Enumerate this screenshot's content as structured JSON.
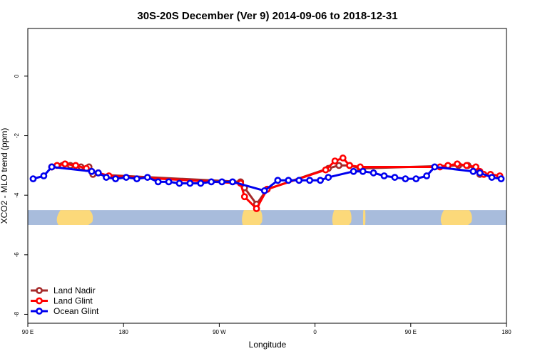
{
  "chart_data": {
    "type": "line",
    "title": "30S-20S December (Ver 9)   2014-09-06 to 2018-12-31",
    "xlabel": "Longitude",
    "ylabel": "XCO2 - MLO trend (ppm)",
    "xlim": [
      0,
      360
    ],
    "ylim": [
      -8.3,
      1.6
    ],
    "x_ticks": [
      {
        "value": 0,
        "label": "90 E"
      },
      {
        "value": 72,
        "label": "180"
      },
      {
        "value": 144,
        "label": "90 W"
      },
      {
        "value": 216,
        "label": "0"
      },
      {
        "value": 288,
        "label": "90 E"
      },
      {
        "value": 360,
        "label": "180"
      }
    ],
    "y_ticks": [
      {
        "value": 0,
        "label": "0"
      },
      {
        "value": -2,
        "label": "-2"
      },
      {
        "value": -4,
        "label": "-4"
      },
      {
        "value": -6,
        "label": "-6"
      },
      {
        "value": -8,
        "label": "-8"
      }
    ],
    "land_band": {
      "y_top": -4.5,
      "y_bottom": -5.0,
      "ocean_color": "#a8bcdc",
      "land_color": "#fcd97a",
      "land_segments": [
        [
          20,
          50
        ],
        [
          160,
          177
        ],
        [
          228,
          244
        ],
        [
          252,
          254
        ],
        [
          309,
          335
        ]
      ]
    },
    "legend_position": "bottom-left",
    "series": [
      {
        "name": "Land Nadir",
        "color": "#a52a2a",
        "points": [
          [
            18,
            -3.05
          ],
          [
            26,
            -3.0
          ],
          [
            32,
            -3.0
          ],
          [
            40,
            -3.05
          ],
          [
            46,
            -3.05
          ],
          [
            49,
            -3.3
          ],
          [
            160,
            -3.55
          ],
          [
            163,
            -3.75
          ],
          [
            172,
            -4.3
          ],
          [
            180,
            -3.8
          ],
          [
            226,
            -3.1
          ],
          [
            234,
            -3.0
          ],
          [
            242,
            -3.0
          ],
          [
            250,
            -3.1
          ],
          [
            324,
            -3.0
          ],
          [
            331,
            -3.0
          ],
          [
            336,
            -3.1
          ],
          [
            340,
            -3.3
          ]
        ]
      },
      {
        "name": "Land Glint",
        "color": "#ff0000",
        "points": [
          [
            18,
            -3.05
          ],
          [
            22,
            -3.0
          ],
          [
            28,
            -2.95
          ],
          [
            36,
            -3.0
          ],
          [
            44,
            -3.1
          ],
          [
            48,
            -3.2
          ],
          [
            53,
            -3.25
          ],
          [
            61,
            -3.35
          ],
          [
            160,
            -3.6
          ],
          [
            163,
            -4.05
          ],
          [
            172,
            -4.45
          ],
          [
            180,
            -3.8
          ],
          [
            224,
            -3.15
          ],
          [
            231,
            -2.85
          ],
          [
            237,
            -2.75
          ],
          [
            242,
            -3.0
          ],
          [
            250,
            -3.05
          ],
          [
            310,
            -3.05
          ],
          [
            316,
            -3.0
          ],
          [
            323,
            -2.95
          ],
          [
            330,
            -3.0
          ],
          [
            337,
            -3.05
          ],
          [
            340,
            -3.2
          ],
          [
            343,
            -3.3
          ],
          [
            348,
            -3.3
          ],
          [
            355,
            -3.35
          ]
        ]
      },
      {
        "name": "Ocean Glint",
        "color": "#0000ee",
        "points": [
          [
            4,
            -3.45
          ],
          [
            12,
            -3.35
          ],
          [
            18,
            -3.05
          ],
          [
            48,
            -3.2
          ],
          [
            53,
            -3.25
          ],
          [
            59,
            -3.4
          ],
          [
            66,
            -3.45
          ],
          [
            74,
            -3.4
          ],
          [
            82,
            -3.45
          ],
          [
            90,
            -3.4
          ],
          [
            98,
            -3.55
          ],
          [
            106,
            -3.55
          ],
          [
            114,
            -3.6
          ],
          [
            122,
            -3.6
          ],
          [
            130,
            -3.6
          ],
          [
            138,
            -3.55
          ],
          [
            146,
            -3.55
          ],
          [
            154,
            -3.55
          ],
          [
            178,
            -3.85
          ],
          [
            188,
            -3.5
          ],
          [
            196,
            -3.5
          ],
          [
            204,
            -3.5
          ],
          [
            212,
            -3.5
          ],
          [
            220,
            -3.5
          ],
          [
            226,
            -3.4
          ],
          [
            245,
            -3.2
          ],
          [
            252,
            -3.2
          ],
          [
            260,
            -3.25
          ],
          [
            268,
            -3.35
          ],
          [
            276,
            -3.4
          ],
          [
            284,
            -3.45
          ],
          [
            292,
            -3.45
          ],
          [
            300,
            -3.35
          ],
          [
            306,
            -3.05
          ],
          [
            335,
            -3.2
          ],
          [
            340,
            -3.25
          ],
          [
            349,
            -3.4
          ],
          [
            356,
            -3.45
          ]
        ]
      }
    ]
  }
}
